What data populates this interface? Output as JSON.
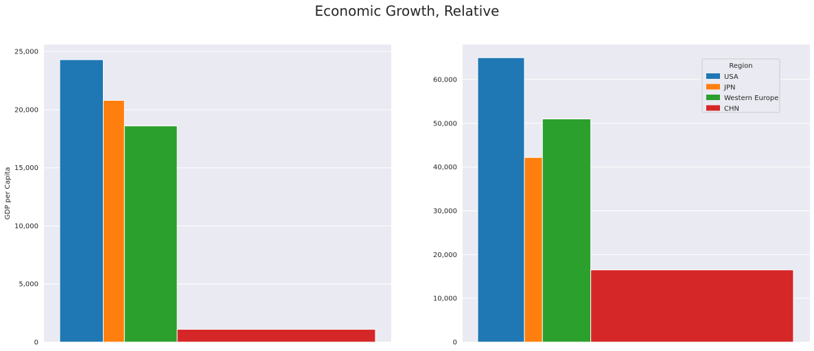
{
  "figure": {
    "title": "Economic Growth, Relative"
  },
  "colors": {
    "USA": "#1f77b4",
    "JPN": "#ff7f0e",
    "Western Europe": "#2ca02c",
    "CHN": "#d62728",
    "axes_bg": "#eaeaf2",
    "grid": "#ffffff"
  },
  "chart_data": [
    {
      "type": "bar",
      "title": "",
      "xlabel": "",
      "ylabel": "GDP per Capita",
      "ylim": [
        0,
        25600
      ],
      "yticks": [
        0,
        5000,
        10000,
        15000,
        20000,
        25000
      ],
      "ytick_labels": [
        "0",
        "5,000",
        "10,000",
        "15,000",
        "20,000",
        "25,000"
      ],
      "grid": true,
      "legend": false,
      "series": [
        {
          "name": "USA",
          "value": 24300,
          "width_share": 0.138
        },
        {
          "name": "JPN",
          "value": 20800,
          "width_share": 0.067
        },
        {
          "name": "Western Europe",
          "value": 18600,
          "width_share": 0.167
        },
        {
          "name": "CHN",
          "value": 1100,
          "width_share": 0.628
        }
      ]
    },
    {
      "type": "bar",
      "title": "",
      "xlabel": "",
      "ylabel": "",
      "ylim": [
        0,
        68000
      ],
      "yticks": [
        0,
        10000,
        20000,
        30000,
        40000,
        50000,
        60000
      ],
      "ytick_labels": [
        "0",
        "10,000",
        "20,000",
        "30,000",
        "40,000",
        "50,000",
        "60,000"
      ],
      "grid": true,
      "legend": true,
      "legend_title": "Region",
      "legend_position": "top-right",
      "legend_entries": [
        "USA",
        "JPN",
        "Western Europe",
        "CHN"
      ],
      "series": [
        {
          "name": "USA",
          "value": 65000,
          "width_share": 0.148
        },
        {
          "name": "JPN",
          "value": 42200,
          "width_share": 0.057
        },
        {
          "name": "Western Europe",
          "value": 51000,
          "width_share": 0.153
        },
        {
          "name": "CHN",
          "value": 16500,
          "width_share": 0.642
        }
      ]
    }
  ]
}
